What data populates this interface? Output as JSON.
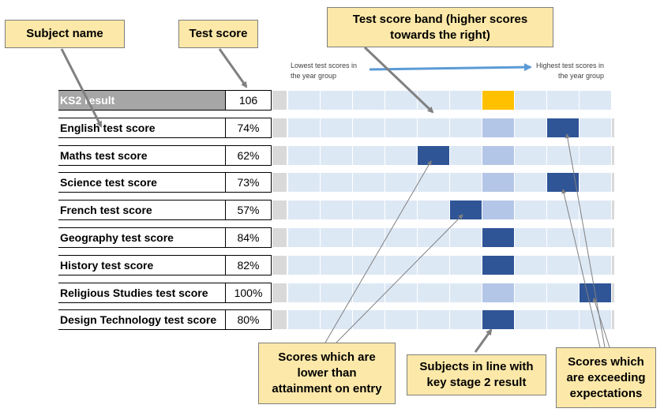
{
  "callouts": {
    "subject_name": "Subject name",
    "test_score": "Test score",
    "band": "Test score band (higher scores\ntowards the right)",
    "lower": "Scores which are\nlower than\nattainment on entry",
    "in_line": "Subjects in line with\nkey stage 2 result",
    "exceeding": "Scores which\nare exceeding\nexpectations"
  },
  "range_labels": {
    "lowest": "Lowest test scores in\nthe year group",
    "highest": "Highest test scores in\nthe year group"
  },
  "colors": {
    "band_light": "#dde8f5",
    "band_grey": "#d9d9d9",
    "ks2_marker": "#ffc000",
    "target_band": "#b4c6e7",
    "score_marker": "#2f5597",
    "arrow_blue": "#5b9bd5"
  },
  "rows": [
    {
      "label": "KS2 result",
      "score": "106",
      "band": 6,
      "marker": "ks2"
    },
    {
      "label": "English test score",
      "score": "74%",
      "band": 8,
      "marker": "score"
    },
    {
      "label": "Maths test score",
      "score": "62%",
      "band": 4,
      "marker": "score"
    },
    {
      "label": "Science test score",
      "score": "73%",
      "band": 8,
      "marker": "score"
    },
    {
      "label": "French test score",
      "score": "57%",
      "band": 5,
      "marker": "score"
    },
    {
      "label": "Geography test score",
      "score": "84%",
      "band": 6,
      "marker": "score"
    },
    {
      "label": "History test score",
      "score": "82%",
      "band": 6,
      "marker": "score"
    },
    {
      "label": "Religious Studies test score",
      "score": "100%",
      "band": 9,
      "marker": "score"
    },
    {
      "label": "Design Technology test score",
      "score": "80%",
      "band": 6,
      "marker": "score"
    }
  ],
  "ks2_band": 6,
  "band_count": 10
}
